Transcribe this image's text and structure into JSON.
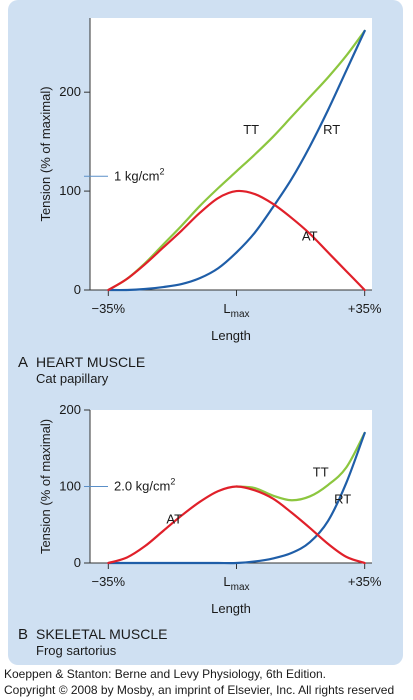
{
  "chart_data": [
    {
      "type": "line",
      "panel_letter": "A",
      "title": "HEART MUSCLE",
      "subtitle": "Cat papillary",
      "xlabel": "Length",
      "ylabel": "Tension (% of maximal)",
      "x_ticks": [
        {
          "value": -35,
          "label": "−35%"
        },
        {
          "value": 0,
          "label_main": "L",
          "label_sub": "max"
        },
        {
          "value": 35,
          "label": "+35%"
        }
      ],
      "y_ticks": [
        0,
        100,
        200
      ],
      "xlim": [
        -40,
        37
      ],
      "ylim": [
        0,
        275
      ],
      "annotation": {
        "text": "1 kg/cm",
        "sup": "2",
        "y": 115
      },
      "series": [
        {
          "name": "TT",
          "color": "#8cc63f",
          "x": [
            -35,
            -30,
            -25,
            -20,
            -15,
            -10,
            -5,
            0,
            5,
            10,
            15,
            20,
            25,
            30,
            35
          ],
          "y": [
            0,
            11,
            27,
            46,
            65,
            85,
            103,
            120,
            137,
            155,
            175,
            195,
            215,
            237,
            262
          ],
          "label_at": [
            4,
            162
          ]
        },
        {
          "name": "RT",
          "color": "#1f5ea8",
          "x": [
            -35,
            -30,
            -25,
            -20,
            -15,
            -10,
            -5,
            0,
            5,
            10,
            15,
            20,
            25,
            30,
            35
          ],
          "y": [
            0,
            0,
            1,
            3,
            6,
            12,
            22,
            38,
            58,
            84,
            112,
            145,
            182,
            222,
            262
          ],
          "label_at": [
            26,
            162
          ]
        },
        {
          "name": "AT",
          "color": "#e0202a",
          "x": [
            -35,
            -30,
            -25,
            -20,
            -15,
            -10,
            -5,
            0,
            5,
            10,
            15,
            20,
            25,
            30,
            35
          ],
          "y": [
            0,
            11,
            26,
            43,
            60,
            78,
            93,
            100,
            97,
            87,
            73,
            57,
            38,
            19,
            0
          ],
          "label_at": [
            20,
            54
          ]
        }
      ]
    },
    {
      "type": "line",
      "panel_letter": "B",
      "title": "SKELETAL MUSCLE",
      "subtitle": "Frog sartorius",
      "xlabel": "Length",
      "ylabel": "Tension (% of maximal)",
      "x_ticks": [
        {
          "value": -35,
          "label": "−35%"
        },
        {
          "value": 0,
          "label_main": "L",
          "label_sub": "max"
        },
        {
          "value": 35,
          "label": "+35%"
        }
      ],
      "y_ticks": [
        0,
        100,
        200
      ],
      "xlim": [
        -40,
        37
      ],
      "ylim": [
        0,
        200
      ],
      "annotation": {
        "text": "2.0 kg/cm",
        "sup": "2",
        "y": 100
      },
      "series": [
        {
          "name": "TT",
          "color": "#8cc63f",
          "x": [
            0,
            5,
            10,
            15,
            20,
            25,
            30,
            35
          ],
          "y": [
            100,
            98,
            88,
            82,
            87,
            102,
            125,
            170
          ],
          "label_at": [
            23,
            118
          ]
        },
        {
          "name": "RT",
          "color": "#1f5ea8",
          "x": [
            -35,
            -30,
            -25,
            -20,
            -15,
            -10,
            -5,
            0,
            5,
            10,
            15,
            20,
            25,
            30,
            35
          ],
          "y": [
            0,
            0,
            0,
            0,
            0,
            0,
            0,
            0,
            2,
            6,
            13,
            27,
            55,
            105,
            170
          ],
          "label_at": [
            29,
            83
          ]
        },
        {
          "name": "AT",
          "color": "#e0202a",
          "x": [
            -35,
            -30,
            -25,
            -20,
            -15,
            -10,
            -5,
            0,
            5,
            10,
            15,
            20,
            25,
            30,
            35
          ],
          "y": [
            0,
            7,
            22,
            42,
            62,
            80,
            94,
            100,
            95,
            84,
            66,
            46,
            25,
            8,
            0
          ],
          "label_at": [
            -17,
            57
          ]
        }
      ]
    }
  ],
  "credit": {
    "line1": "Koeppen & Stanton: Berne and Levy Physiology, 6th Edition.",
    "line2": "Copyright © 2008 by Mosby, an imprint of Elsevier, Inc. All rights reserved"
  }
}
